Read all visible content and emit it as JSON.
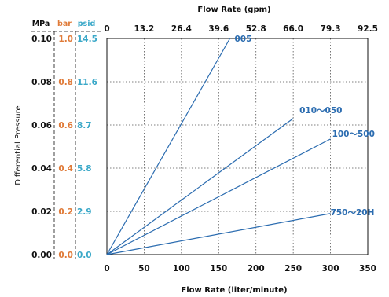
{
  "chart_data": {
    "type": "line",
    "xlabel_bottom": "Flow Rate (liter/minute)",
    "xlabel_top": "Flow Rate (gpm)",
    "ylabel": "Differential Pressure",
    "xlim": [
      0,
      350
    ],
    "ylim": [
      0,
      0.1
    ],
    "grid": true,
    "x_ticks_bottom": [
      "0",
      "50",
      "100",
      "150",
      "200",
      "250",
      "300",
      "350"
    ],
    "x_ticks_top": [
      "0",
      "13.2",
      "26.4",
      "39.6",
      "52.8",
      "66.0",
      "79.3",
      "92.5"
    ],
    "y_units": [
      {
        "name": "MPa",
        "color": "#111111",
        "ticks": [
          "0.00",
          "0.02",
          "0.04",
          "0.06",
          "0.08",
          "0.10"
        ]
      },
      {
        "name": "bar",
        "color": "#e07b39",
        "ticks": [
          "0.0",
          "0.2",
          "0.4",
          "0.6",
          "0.8",
          "1.0"
        ]
      },
      {
        "name": "psid",
        "color": "#3aa8c8",
        "ticks": [
          "0.0",
          "2.9",
          "5.8",
          "8.7",
          "11.6",
          "14.5"
        ]
      }
    ],
    "line_color": "#2b6cb0",
    "series": [
      {
        "name": "005",
        "x": [
          0,
          165
        ],
        "y": [
          0,
          0.1
        ]
      },
      {
        "name": "010～050",
        "x": [
          0,
          250
        ],
        "y": [
          0,
          0.063
        ]
      },
      {
        "name": "100～500",
        "x": [
          0,
          300
        ],
        "y": [
          0,
          0.0535
        ]
      },
      {
        "name": "750～20H",
        "x": [
          0,
          300
        ],
        "y": [
          0,
          0.019
        ]
      }
    ]
  }
}
